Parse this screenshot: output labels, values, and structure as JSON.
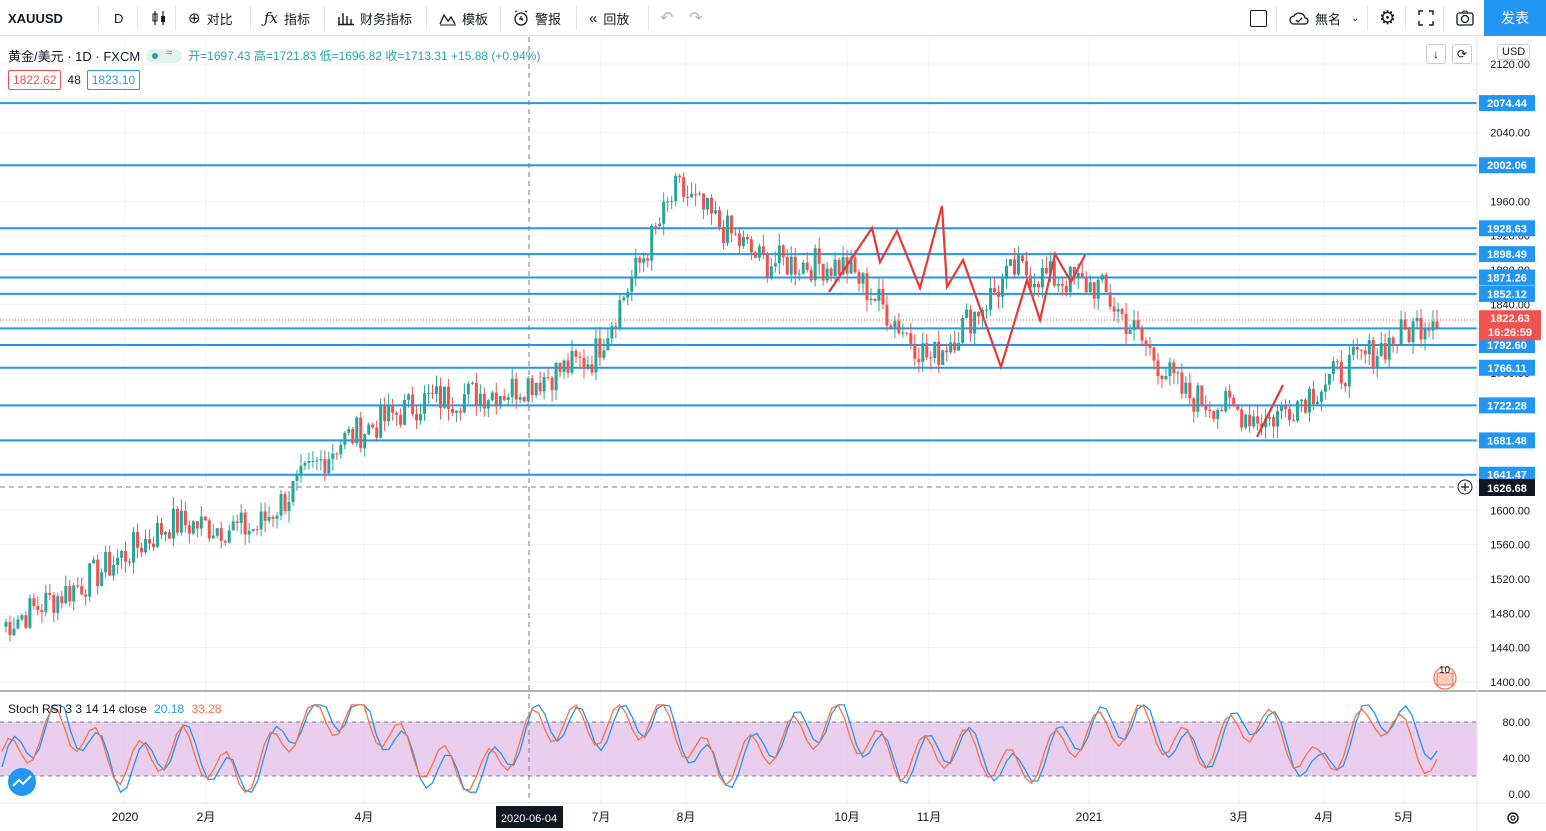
{
  "toolbar": {
    "symbol": "XAUUSD",
    "interval": "D",
    "compare": "对比",
    "indicators": "指标",
    "financials": "财务指标",
    "templates": "模板",
    "alert": "警报",
    "replay": "回放",
    "layout_name": "無名",
    "publish": "发表"
  },
  "legend": {
    "title": "黄金/美元 · 1D · FXCM",
    "ohlc": "开=1697.43 高=1721.83 低=1696.82 收=1713.31 +15.88 (+0.94%)",
    "sell": "1822.62",
    "spread": "48",
    "buy": "1823.10",
    "currency": "USD"
  },
  "stoch": {
    "label": "Stoch RSI 3 3 14 14 close",
    "k": "20.18",
    "d": "33.28"
  },
  "badges": {
    "current_price": "1822.63",
    "countdown": "16:26:59",
    "crosshair_price": "1626.68",
    "crosshair_date": "2020-06-04",
    "events": "10"
  },
  "colors": {
    "up": "#26a69a",
    "down": "#ef5350",
    "hline": "#2196f3",
    "k": "#2196f3",
    "d": "#ff7043",
    "band": "#e1bee7",
    "pattern": "#e53935"
  },
  "chart_data": [
    {
      "type": "candlestick",
      "title": "黄金/美元 · 1D · FXCM",
      "ylim": [
        1380,
        2130
      ],
      "y_ticks": [
        "2120.00",
        "2080.00",
        "2040.00",
        "2000.00",
        "1960.00",
        "1920.00",
        "1880.00",
        "1840.00",
        "1800.00",
        "1760.00",
        "1720.00",
        "1680.00",
        "1640.00",
        "1600.00",
        "1560.00",
        "1520.00",
        "1480.00",
        "1440.00",
        "1400.00"
      ],
      "x_ticks": [
        "2020",
        "2月",
        "4月",
        "7月",
        "8月",
        "10月",
        "11月",
        "2021",
        "3月",
        "4月",
        "5月"
      ],
      "horizontal_levels": [
        "2074.44",
        "2002.06",
        "1928.63",
        "1898.49",
        "1871.26",
        "1852.12",
        "1812.04",
        "1792.60",
        "1766.11",
        "1722.28",
        "1681.48",
        "1641.47"
      ],
      "x": [
        "2019-12",
        "2020-01",
        "2020-02",
        "2020-03",
        "2020-04",
        "2020-05",
        "2020-06",
        "2020-07",
        "2020-08",
        "2020-09",
        "2020-10",
        "2020-11",
        "2020-12",
        "2021-01",
        "2021-02",
        "2021-03",
        "2021-04",
        "2021-05"
      ],
      "close": [
        1465,
        1518,
        1585,
        1578,
        1680,
        1728,
        1740,
        1778,
        1975,
        1890,
        1885,
        1775,
        1880,
        1860,
        1735,
        1705,
        1770,
        1830
      ],
      "last": 1822.63
    },
    {
      "type": "line",
      "title": "Stoch RSI 3 3 14 14 close",
      "ylim": [
        0,
        100
      ],
      "y_ticks": [
        "80.00",
        "40.00",
        "0.00"
      ],
      "series": [
        {
          "name": "K",
          "values": [
            30,
            90,
            20,
            60,
            10,
            85,
            95,
            30,
            15,
            85,
            70,
            90,
            20,
            65,
            85,
            30,
            60,
            20,
            70,
            85,
            40,
            90,
            20,
            95,
            55
          ]
        },
        {
          "name": "D",
          "values": [
            35,
            80,
            30,
            55,
            15,
            80,
            90,
            40,
            20,
            80,
            75,
            85,
            28,
            60,
            80,
            35,
            55,
            25,
            65,
            80,
            45,
            85,
            28,
            90,
            33
          ]
        }
      ],
      "last_k": 20.18,
      "last_d": 33.28
    }
  ]
}
